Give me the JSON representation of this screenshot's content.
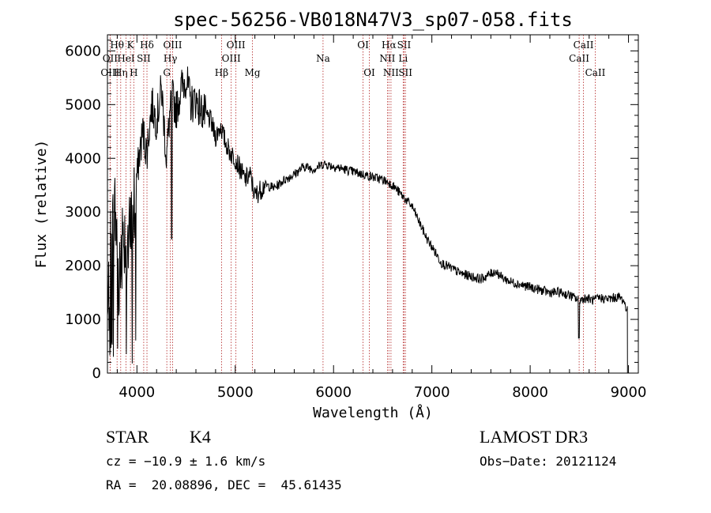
{
  "chart_data": {
    "type": "line",
    "title": "spec-56256-VB018N47V3_sp07-058.fits",
    "xlabel": "Wavelength (Å)",
    "ylabel": "Flux (relative)",
    "xlim": [
      3700,
      9100
    ],
    "ylim": [
      0,
      6300
    ],
    "x_ticks": [
      "4000",
      "5000",
      "6000",
      "7000",
      "8000",
      "9000"
    ],
    "y_ticks": [
      "0",
      "1000",
      "2000",
      "3000",
      "4000",
      "5000",
      "6000"
    ],
    "series": [
      {
        "x": [
          3700,
          3740,
          3780,
          3820,
          3860,
          3900,
          3940,
          3980,
          4020,
          4060,
          4100,
          4150,
          4200,
          4250,
          4300,
          4350,
          4400,
          4450,
          4500,
          4550,
          4600,
          4650,
          4700,
          4750,
          4800,
          4850,
          4900,
          4950,
          5000,
          5050,
          5100,
          5150,
          5200,
          5300,
          5400,
          5500,
          5600,
          5700,
          5800,
          5900,
          6000,
          6100,
          6200,
          6300,
          6400,
          6500,
          6560,
          6600,
          6650,
          6700,
          6750,
          6800,
          6850,
          6900,
          6950,
          7000,
          7050,
          7100,
          7150,
          7200,
          7300,
          7400,
          7500,
          7600,
          7650,
          7700,
          7800,
          7900,
          8000,
          8100,
          8200,
          8300,
          8400,
          8450,
          8500,
          8550,
          8600,
          8650,
          8700,
          8800,
          8900,
          8950,
          8990
        ],
        "y": [
          900,
          2600,
          3000,
          1700,
          2800,
          2300,
          2600,
          3200,
          4000,
          4500,
          4100,
          5000,
          4700,
          5300,
          4000,
          5200,
          4900,
          5300,
          5500,
          5000,
          5100,
          4900,
          4800,
          4700,
          4400,
          4600,
          4300,
          4100,
          4000,
          3800,
          3600,
          3700,
          3300,
          3500,
          3450,
          3600,
          3700,
          3850,
          3800,
          3900,
          3850,
          3800,
          3750,
          3700,
          3650,
          3600,
          3550,
          3500,
          3400,
          3300,
          3200,
          3100,
          2900,
          2700,
          2500,
          2350,
          2200,
          2050,
          2000,
          1950,
          1850,
          1800,
          1750,
          1850,
          1900,
          1800,
          1700,
          1650,
          1600,
          1550,
          1500,
          1500,
          1450,
          1400,
          1350,
          1400,
          1380,
          1350,
          1400,
          1380,
          1420,
          1350,
          1150
        ]
      }
    ],
    "spectral_lines": [
      {
        "label": "Hθ",
        "wl": 3798,
        "row": 1
      },
      {
        "label": "OII",
        "wl": 3727,
        "row": 2
      },
      {
        "label": "OIII",
        "wl": 3727,
        "row": 3
      },
      {
        "label": "K",
        "wl": 3934,
        "row": 1
      },
      {
        "label": "Hη",
        "wl": 3835,
        "row": 3
      },
      {
        "label": "HeI",
        "wl": 3889,
        "row": 2
      },
      {
        "label": "Hδ",
        "wl": 4102,
        "row": 1
      },
      {
        "label": "SII",
        "wl": 4069,
        "row": 2
      },
      {
        "label": "H",
        "wl": 3968,
        "row": 3
      },
      {
        "label": "OIII",
        "wl": 4363,
        "row": 1
      },
      {
        "label": "Hγ",
        "wl": 4340,
        "row": 2
      },
      {
        "label": "G",
        "wl": 4304,
        "row": 3
      },
      {
        "label": "OIII",
        "wl": 5007,
        "row": 1
      },
      {
        "label": "OIII",
        "wl": 4959,
        "row": 2
      },
      {
        "label": "Hβ",
        "wl": 4861,
        "row": 3
      },
      {
        "label": "Mg",
        "wl": 5175,
        "row": 3
      },
      {
        "label": "Na",
        "wl": 5893,
        "row": 2
      },
      {
        "label": "OI",
        "wl": 6300,
        "row": 1
      },
      {
        "label": "OI",
        "wl": 6364,
        "row": 3
      },
      {
        "label": "Hα",
        "wl": 6563,
        "row": 1
      },
      {
        "label": "SII",
        "wl": 6717,
        "row": 1
      },
      {
        "label": "NII",
        "wl": 6548,
        "row": 2
      },
      {
        "label": "Li",
        "wl": 6708,
        "row": 2
      },
      {
        "label": "NII",
        "wl": 6584,
        "row": 3
      },
      {
        "label": "SII",
        "wl": 6731,
        "row": 3
      },
      {
        "label": "CaII",
        "wl": 8542,
        "row": 1
      },
      {
        "label": "CaII",
        "wl": 8498,
        "row": 2
      },
      {
        "label": "CaII",
        "wl": 8662,
        "row": 3
      }
    ]
  },
  "info": {
    "object_class": "STAR",
    "subclass": "K4",
    "survey": "LAMOST DR3",
    "cz": "cz = −10.9 ± 1.6 km/s",
    "obs_date": "Obs−Date: 20121124",
    "coords": "RA =  20.08896, DEC =  45.61435"
  }
}
